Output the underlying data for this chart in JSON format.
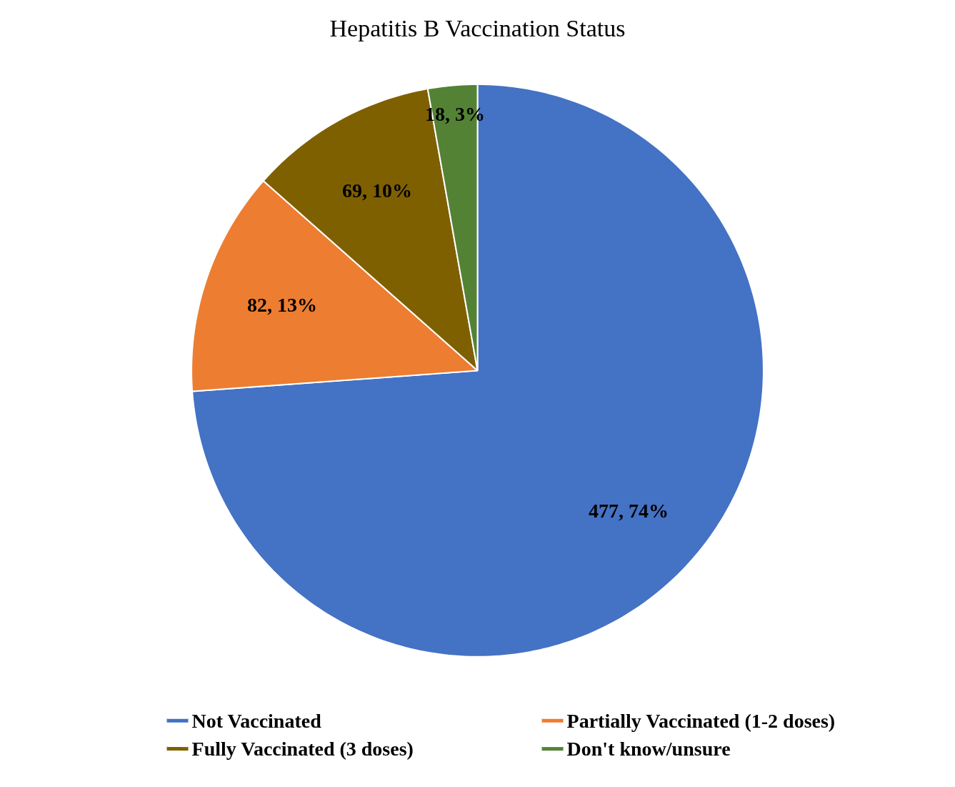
{
  "chart_data": {
    "type": "pie",
    "title": "Hepatitis B Vaccination Status",
    "categories": [
      "Not Vaccinated",
      "Partially Vaccinated (1-2 doses)",
      "Fully Vaccinated (3 doses)",
      "Don't know/unsure"
    ],
    "values": [
      477,
      82,
      69,
      18
    ],
    "value_labels": [
      "477, 74%",
      "82, 13%",
      "69, 10%",
      "18, 3%"
    ],
    "colors": [
      "#4472c4",
      "#ed7d31",
      "#7f6000",
      "#548235"
    ],
    "legend": "bottom"
  }
}
